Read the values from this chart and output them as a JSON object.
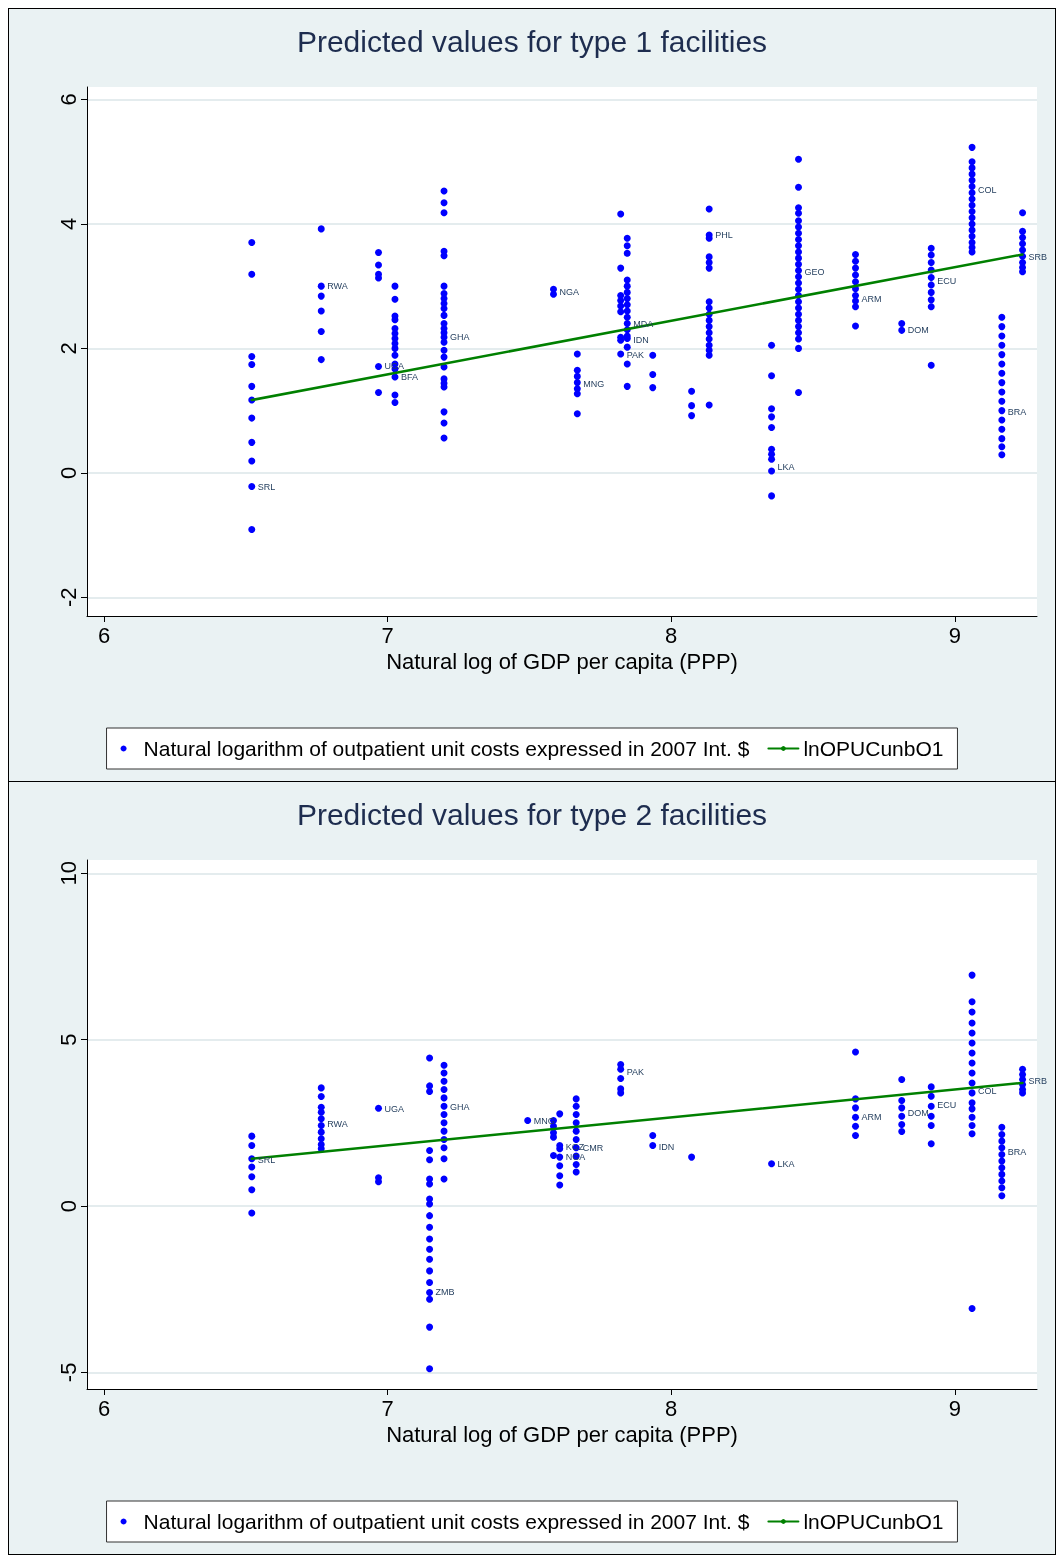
{
  "chart_data": [
    {
      "type": "scatter",
      "title": "Predicted values for type 1 facilities",
      "xlabel": "Natural log of GDP per capita (PPP)",
      "xlim": [
        5.94,
        9.29
      ],
      "xticks": [
        6,
        7,
        8,
        9
      ],
      "ylim": [
        -2.3,
        6.2
      ],
      "yticks": [
        -2,
        0,
        2,
        4,
        6
      ],
      "grid": "y",
      "legend": "bottom",
      "marker": "circle",
      "series": [
        {
          "name": "Natural logarithm of outpatient unit costs expressed in 2007 Int. $",
          "color": "#0000ff",
          "x": [
            6.521,
            6.521,
            6.521,
            6.521,
            6.521,
            6.521,
            6.521,
            6.521,
            6.521,
            6.521,
            6.521,
            6.766,
            6.766,
            6.766,
            6.766,
            6.766,
            6.766,
            6.968,
            6.968,
            6.968,
            6.968,
            6.968,
            6.968,
            7.026,
            7.026,
            7.026,
            7.026,
            7.026,
            7.026,
            7.026,
            7.026,
            7.026,
            7.026,
            7.026,
            7.026,
            7.026,
            7.026,
            7.026,
            7.199,
            7.199,
            7.199,
            7.199,
            7.199,
            7.199,
            7.199,
            7.199,
            7.199,
            7.199,
            7.199,
            7.199,
            7.199,
            7.199,
            7.199,
            7.199,
            7.199,
            7.199,
            7.199,
            7.199,
            7.199,
            7.199,
            7.199,
            7.199,
            7.199,
            7.585,
            7.585,
            7.669,
            7.669,
            7.669,
            7.669,
            7.669,
            7.669,
            7.669,
            7.822,
            7.822,
            7.822,
            7.822,
            7.822,
            7.822,
            7.822,
            7.822,
            7.822,
            7.845,
            7.845,
            7.845,
            7.845,
            7.845,
            7.845,
            7.845,
            7.845,
            7.845,
            7.845,
            7.845,
            7.845,
            7.845,
            7.845,
            7.845,
            7.845,
            7.845,
            7.935,
            7.935,
            7.935,
            8.072,
            8.072,
            8.072,
            8.134,
            8.134,
            8.134,
            8.134,
            8.134,
            8.134,
            8.134,
            8.134,
            8.134,
            8.134,
            8.134,
            8.134,
            8.134,
            8.134,
            8.134,
            8.134,
            8.134,
            8.354,
            8.354,
            8.354,
            8.354,
            8.354,
            8.354,
            8.354,
            8.354,
            8.354,
            8.354,
            8.449,
            8.449,
            8.449,
            8.449,
            8.449,
            8.449,
            8.449,
            8.449,
            8.449,
            8.449,
            8.449,
            8.449,
            8.449,
            8.449,
            8.449,
            8.449,
            8.449,
            8.449,
            8.449,
            8.449,
            8.449,
            8.449,
            8.449,
            8.449,
            8.449,
            8.449,
            8.65,
            8.65,
            8.65,
            8.65,
            8.65,
            8.65,
            8.65,
            8.65,
            8.65,
            8.65,
            8.813,
            8.813,
            8.917,
            8.917,
            8.917,
            8.917,
            8.917,
            8.917,
            8.917,
            8.917,
            8.917,
            8.917,
            9.061,
            9.061,
            9.061,
            9.061,
            9.061,
            9.061,
            9.061,
            9.061,
            9.061,
            9.061,
            9.061,
            9.061,
            9.061,
            9.061,
            9.061,
            9.061,
            9.061,
            9.166,
            9.166,
            9.166,
            9.166,
            9.166,
            9.166,
            9.166,
            9.166,
            9.166,
            9.166,
            9.166,
            9.166,
            9.166,
            9.166,
            9.166,
            9.166,
            9.239,
            9.239,
            9.239,
            9.239,
            9.239,
            9.239,
            9.239,
            9.239,
            9.239
          ],
          "values": [
            3.7,
            3.19,
            1.87,
            1.74,
            1.39,
            1.17,
            0.88,
            0.49,
            0.19,
            -0.22,
            -0.91,
            3.92,
            3.0,
            2.84,
            2.6,
            2.27,
            1.82,
            3.54,
            3.34,
            3.19,
            3.13,
            1.71,
            1.29,
            3.0,
            2.79,
            2.52,
            2.46,
            2.32,
            2.24,
            2.16,
            2.08,
            2.0,
            1.89,
            1.75,
            1.67,
            1.54,
            1.25,
            1.13,
            4.53,
            4.34,
            4.18,
            3.56,
            3.49,
            3.0,
            2.88,
            2.8,
            2.72,
            2.64,
            2.53,
            2.4,
            2.32,
            2.25,
            2.18,
            2.1,
            1.97,
            1.86,
            1.7,
            1.51,
            1.44,
            1.38,
            0.98,
            0.8,
            0.56,
            2.95,
            2.87,
            1.91,
            1.65,
            1.55,
            1.45,
            1.35,
            1.27,
            0.95,
            4.16,
            3.29,
            2.85,
            2.77,
            2.68,
            2.59,
            2.18,
            2.13,
            1.91,
            3.77,
            3.65,
            3.53,
            3.1,
            3.0,
            2.9,
            2.8,
            2.7,
            2.6,
            2.5,
            2.4,
            2.3,
            2.2,
            2.16,
            2.02,
            1.75,
            1.39,
            1.89,
            1.58,
            1.37,
            1.31,
            1.08,
            0.92,
            4.24,
            3.82,
            3.77,
            3.47,
            3.38,
            3.29,
            2.75,
            2.65,
            2.55,
            2.45,
            2.35,
            2.25,
            2.15,
            2.05,
            1.97,
            1.89,
            1.09,
            2.05,
            1.56,
            1.03,
            0.9,
            0.73,
            0.38,
            0.3,
            0.22,
            0.03,
            -0.37,
            5.04,
            4.59,
            4.26,
            4.17,
            4.05,
            3.95,
            3.85,
            3.75,
            3.65,
            3.55,
            3.45,
            3.35,
            3.25,
            3.15,
            3.05,
            2.95,
            2.85,
            2.75,
            2.65,
            2.55,
            2.45,
            2.35,
            2.25,
            2.15,
            2.0,
            1.29,
            3.51,
            3.4,
            3.29,
            3.18,
            3.07,
            2.96,
            2.85,
            2.76,
            2.67,
            2.36,
            2.4,
            2.29,
            3.61,
            3.5,
            3.38,
            3.26,
            3.14,
            3.02,
            2.9,
            2.78,
            2.67,
            1.73,
            5.23,
            5.0,
            4.9,
            4.8,
            4.7,
            4.6,
            4.5,
            4.4,
            4.3,
            4.2,
            4.1,
            4.0,
            3.9,
            3.8,
            3.7,
            3.62,
            3.55,
            2.5,
            2.35,
            2.2,
            2.05,
            1.9,
            1.75,
            1.6,
            1.45,
            1.3,
            1.15,
            1.0,
            0.85,
            0.7,
            0.55,
            0.42,
            0.29,
            4.18,
            3.88,
            3.78,
            3.68,
            3.58,
            3.48,
            3.38,
            3.3,
            3.23
          ]
        },
        {
          "name": "lnOPUCunbO1",
          "type": "line",
          "marker": "none",
          "color": "#008000",
          "x": [
            6.521,
            9.239
          ],
          "values": [
            1.17,
            3.51
          ]
        }
      ],
      "annotations": [
        {
          "text": "SRL",
          "x": 6.521,
          "y": -0.22
        },
        {
          "text": "RWA",
          "x": 6.766,
          "y": 3.0
        },
        {
          "text": "UGA",
          "x": 6.968,
          "y": 1.71
        },
        {
          "text": "BFA",
          "x": 7.026,
          "y": 1.54
        },
        {
          "text": "GHA",
          "x": 7.199,
          "y": 2.18
        },
        {
          "text": "NGA",
          "x": 7.585,
          "y": 2.91
        },
        {
          "text": "MNG",
          "x": 7.669,
          "y": 1.42
        },
        {
          "text": "MDA",
          "x": 7.845,
          "y": 2.39
        },
        {
          "text": "IDN",
          "x": 7.845,
          "y": 2.13
        },
        {
          "text": "PAK",
          "x": 7.822,
          "y": 1.89
        },
        {
          "text": "PHL",
          "x": 8.134,
          "y": 3.82
        },
        {
          "text": "LKA",
          "x": 8.354,
          "y": 0.1
        },
        {
          "text": "GEO",
          "x": 8.449,
          "y": 3.22
        },
        {
          "text": "ARM",
          "x": 8.65,
          "y": 2.79
        },
        {
          "text": "DOM",
          "x": 8.813,
          "y": 2.29
        },
        {
          "text": "ECU",
          "x": 8.917,
          "y": 3.08
        },
        {
          "text": "COL",
          "x": 9.061,
          "y": 4.55
        },
        {
          "text": "BRA",
          "x": 9.166,
          "y": 0.98
        },
        {
          "text": "SRB",
          "x": 9.239,
          "y": 3.47
        }
      ]
    },
    {
      "type": "scatter",
      "title": "Predicted values for type 2 facilities",
      "xlabel": "Natural log of GDP per capita (PPP)",
      "xlim": [
        5.94,
        9.29
      ],
      "xticks": [
        6,
        7,
        8,
        9
      ],
      "ylim": [
        -5.5,
        10.4
      ],
      "yticks": [
        -5,
        0,
        5,
        10
      ],
      "grid": "y",
      "legend": "bottom",
      "marker": "circle",
      "series": [
        {
          "name": "Natural logarithm of outpatient unit costs expressed in 2007 Int. $",
          "color": "#0000ff",
          "x": [
            6.521,
            6.521,
            6.521,
            6.521,
            6.521,
            6.521,
            6.521,
            6.766,
            6.766,
            6.766,
            6.766,
            6.766,
            6.766,
            6.766,
            6.766,
            6.766,
            6.766,
            6.968,
            6.968,
            6.968,
            7.148,
            7.148,
            7.148,
            7.148,
            7.148,
            7.148,
            7.148,
            7.148,
            7.148,
            7.148,
            7.148,
            7.148,
            7.148,
            7.148,
            7.148,
            7.148,
            7.148,
            7.148,
            7.148,
            7.148,
            7.199,
            7.199,
            7.199,
            7.199,
            7.199,
            7.199,
            7.199,
            7.199,
            7.199,
            7.199,
            7.199,
            7.199,
            7.199,
            7.494,
            7.585,
            7.585,
            7.585,
            7.585,
            7.585,
            7.607,
            7.607,
            7.607,
            7.607,
            7.607,
            7.607,
            7.607,
            7.665,
            7.665,
            7.665,
            7.665,
            7.665,
            7.665,
            7.665,
            7.665,
            7.665,
            7.665,
            7.822,
            7.822,
            7.822,
            7.822,
            7.822,
            7.935,
            7.935,
            8.072,
            8.354,
            8.65,
            8.65,
            8.65,
            8.65,
            8.65,
            8.65,
            8.813,
            8.813,
            8.813,
            8.813,
            8.813,
            8.813,
            8.917,
            8.917,
            8.917,
            8.917,
            8.917,
            8.917,
            9.061,
            9.061,
            9.061,
            9.061,
            9.061,
            9.061,
            9.061,
            9.061,
            9.061,
            9.061,
            9.061,
            9.061,
            9.061,
            9.061,
            9.061,
            9.061,
            9.061,
            9.166,
            9.166,
            9.166,
            9.166,
            9.166,
            9.166,
            9.166,
            9.166,
            9.166,
            9.166,
            9.166,
            9.239,
            9.239,
            9.239,
            9.239,
            9.239,
            9.239
          ],
          "values": [
            2.1,
            1.82,
            1.42,
            1.17,
            0.88,
            0.49,
            -0.21,
            3.55,
            3.29,
            2.97,
            2.82,
            2.62,
            2.42,
            2.22,
            2.02,
            1.85,
            1.72,
            2.94,
            0.85,
            0.73,
            4.45,
            3.61,
            3.44,
            1.67,
            1.39,
            0.81,
            0.66,
            0.21,
            0.06,
            -0.29,
            -0.64,
            -0.99,
            -1.3,
            -1.6,
            -1.95,
            -2.3,
            -2.6,
            -2.8,
            -3.64,
            -4.89,
            4.23,
            4.0,
            3.75,
            3.5,
            3.25,
            3.0,
            2.75,
            2.5,
            2.25,
            2.0,
            1.75,
            1.42,
            0.81,
            2.57,
            2.57,
            2.4,
            2.2,
            2.07,
            1.52,
            2.77,
            1.82,
            1.72,
            1.47,
            1.21,
            0.91,
            0.63,
            3.22,
            3.0,
            2.75,
            2.5,
            2.25,
            2.0,
            1.75,
            1.5,
            1.25,
            1.02,
            4.25,
            4.11,
            3.83,
            3.52,
            3.4,
            2.12,
            1.82,
            1.47,
            1.27,
            4.63,
            3.22,
            2.95,
            2.67,
            2.4,
            2.12,
            3.8,
            3.17,
            2.95,
            2.7,
            2.45,
            2.24,
            3.58,
            3.3,
            3.0,
            2.7,
            2.42,
            1.87,
            6.94,
            6.14,
            5.83,
            5.5,
            5.2,
            4.9,
            4.6,
            4.3,
            4.0,
            3.7,
            3.4,
            3.1,
            2.92,
            2.67,
            2.42,
            2.17,
            -3.08,
            2.37,
            2.15,
            1.95,
            1.75,
            1.55,
            1.35,
            1.15,
            0.95,
            0.75,
            0.55,
            0.31,
            4.11,
            3.95,
            3.8,
            3.65,
            3.5,
            3.4
          ]
        },
        {
          "name": "lnOPUCunbO1",
          "type": "line",
          "marker": "none",
          "color": "#008000",
          "x": [
            6.521,
            9.239
          ],
          "values": [
            1.42,
            3.7
          ]
        }
      ],
      "annotations": [
        {
          "text": "SRL",
          "x": 6.521,
          "y": 1.39
        },
        {
          "text": "RWA",
          "x": 6.766,
          "y": 2.47
        },
        {
          "text": "UGA",
          "x": 6.968,
          "y": 2.92
        },
        {
          "text": "GHA",
          "x": 7.199,
          "y": 2.98
        },
        {
          "text": "ZMB",
          "x": 7.148,
          "y": -2.59
        },
        {
          "text": "MNG",
          "x": 7.494,
          "y": 2.57
        },
        {
          "text": "KGZ",
          "x": 7.607,
          "y": 1.78
        },
        {
          "text": "NGA",
          "x": 7.607,
          "y": 1.48
        },
        {
          "text": "CMR",
          "x": 7.665,
          "y": 1.75
        },
        {
          "text": "PAK",
          "x": 7.822,
          "y": 4.04
        },
        {
          "text": "IDN",
          "x": 7.935,
          "y": 1.78
        },
        {
          "text": "LKA",
          "x": 8.354,
          "y": 1.27
        },
        {
          "text": "ARM",
          "x": 8.65,
          "y": 2.68
        },
        {
          "text": "DOM",
          "x": 8.813,
          "y": 2.8
        },
        {
          "text": "ECU",
          "x": 8.917,
          "y": 3.04
        },
        {
          "text": "COL",
          "x": 9.061,
          "y": 3.46
        },
        {
          "text": "BRA",
          "x": 9.166,
          "y": 1.63
        },
        {
          "text": "SRB",
          "x": 9.239,
          "y": 3.77
        }
      ]
    }
  ]
}
